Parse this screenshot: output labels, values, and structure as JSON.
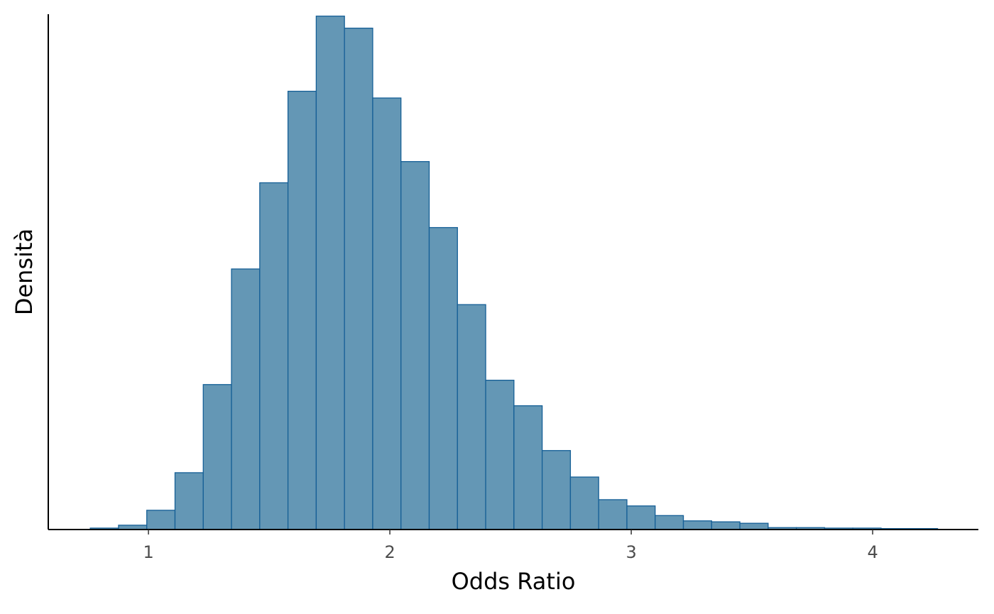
{
  "chart_data": {
    "type": "histogram",
    "x_label": "Odds Ratio",
    "y_label": "Densità",
    "bins": [
      0.759,
      0.876,
      0.993,
      1.11,
      1.227,
      1.344,
      1.461,
      1.578,
      1.695,
      1.812,
      1.929,
      2.046,
      2.163,
      2.28,
      2.397,
      2.514,
      2.631,
      2.748,
      2.865,
      2.982,
      3.099,
      3.216,
      3.333,
      3.45,
      3.567,
      3.684,
      3.801,
      3.918,
      4.035,
      4.152,
      4.269
    ],
    "values": [
      0.003,
      0.009,
      0.04,
      0.118,
      0.301,
      0.541,
      0.72,
      0.91,
      1.066,
      1.041,
      0.896,
      0.764,
      0.627,
      0.467,
      0.31,
      0.257,
      0.164,
      0.109,
      0.062,
      0.049,
      0.029,
      0.018,
      0.016,
      0.013,
      0.004,
      0.004,
      0.003,
      0.003,
      0.002,
      0.002
    ],
    "color": "#6497b5",
    "edge_color": "#155f96",
    "xlim": [
      0.585,
      4.438
    ],
    "xticks": [
      1,
      2,
      3,
      4
    ],
    "ylim": [
      0,
      1.07
    ],
    "grid": false
  }
}
